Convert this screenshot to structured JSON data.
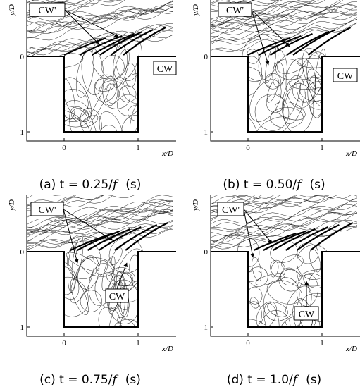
{
  "panels": [
    {
      "caption": {
        "prefix": "(a) t = 0.25/",
        "variable": "f",
        "suffix": "(s)"
      },
      "annotations": [
        "CW'",
        "CW"
      ],
      "x_label": "x/D",
      "y_label": "y/D",
      "x_ticks": [
        "0",
        "1"
      ],
      "y_ticks": [
        "0",
        "-1"
      ]
    },
    {
      "caption": {
        "prefix": "(b) t = 0.50/",
        "variable": "f",
        "suffix": "(s)"
      },
      "annotations": [
        "CW'",
        "CW"
      ],
      "x_label": "x/D",
      "y_label": "y/D",
      "x_ticks": [
        "0",
        "1"
      ],
      "y_ticks": [
        "0",
        "-1"
      ]
    },
    {
      "caption": {
        "prefix": "(c) t = 0.75/",
        "variable": "f",
        "suffix": "(s)"
      },
      "annotations": [
        "CW'",
        "CW"
      ],
      "x_label": "x/D",
      "y_label": "y/D",
      "x_ticks": [
        "0",
        "1"
      ],
      "y_ticks": [
        "0",
        "-1"
      ]
    },
    {
      "caption": {
        "prefix": "(d) t = 1.0/",
        "variable": "f",
        "suffix": "(s)"
      },
      "annotations": [
        "CW'",
        "CW"
      ],
      "x_label": "x/D",
      "y_label": "y/D",
      "x_ticks": [
        "0",
        "1"
      ],
      "y_ticks": [
        "0",
        "-1"
      ]
    }
  ]
}
